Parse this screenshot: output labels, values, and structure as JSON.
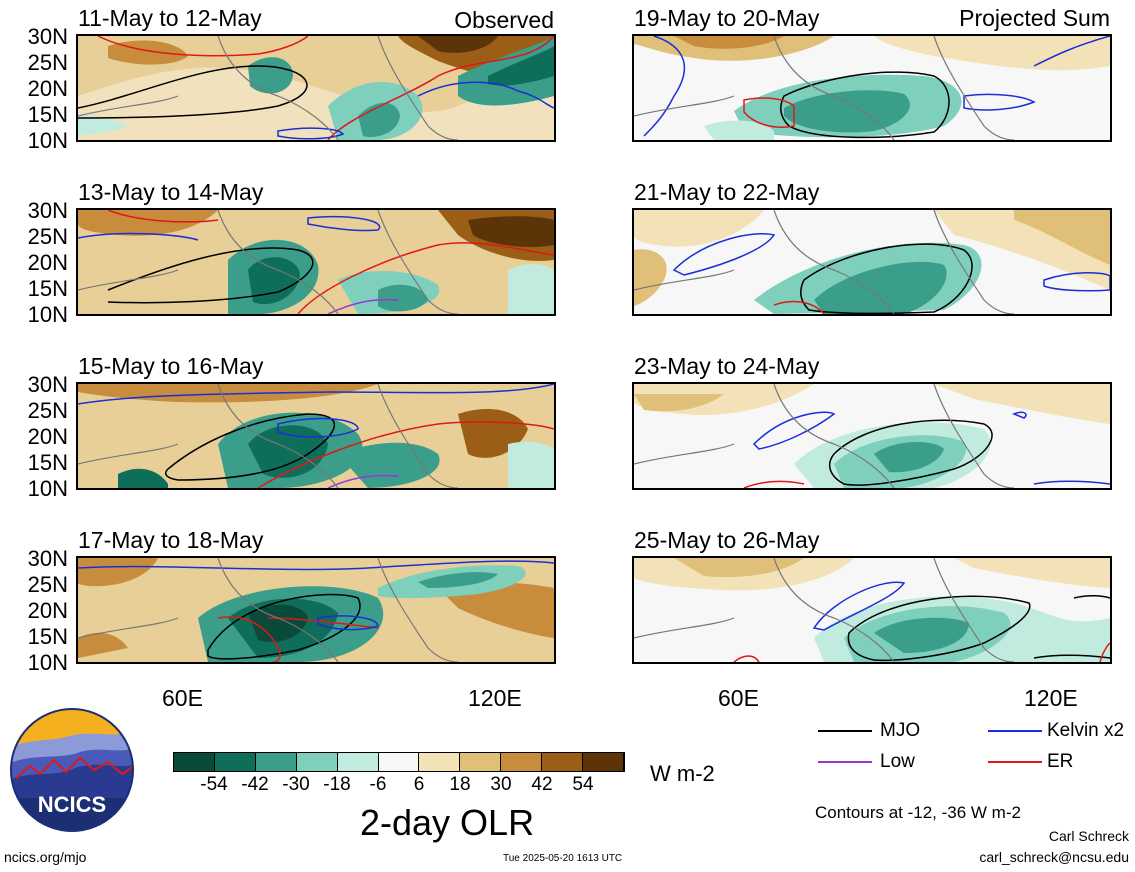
{
  "panels": [
    {
      "title": "11-May to 12-May",
      "tag": "Observed"
    },
    {
      "title": "19-May to 20-May",
      "tag": "Projected Sum"
    },
    {
      "title": "13-May to 14-May",
      "tag": ""
    },
    {
      "title": "21-May to 22-May",
      "tag": ""
    },
    {
      "title": "15-May to 16-May",
      "tag": ""
    },
    {
      "title": "23-May to 24-May",
      "tag": ""
    },
    {
      "title": "17-May to 18-May",
      "tag": ""
    },
    {
      "title": "25-May to 26-May",
      "tag": ""
    }
  ],
  "lat_labels": [
    "30N",
    "25N",
    "20N",
    "15N",
    "10N"
  ],
  "lon_labels": [
    "60E",
    "120E"
  ],
  "colorbar": {
    "ticks": [
      "-54",
      "-42",
      "-30",
      "-18",
      "-6",
      "6",
      "18",
      "30",
      "42",
      "54"
    ],
    "colors": [
      "#0a4a3a",
      "#0f6e5a",
      "#3a9e8a",
      "#7fcfbd",
      "#c2ebe0",
      "#f7f7f7",
      "#f3e2b8",
      "#e0bf78",
      "#c88d3c",
      "#9a5e16",
      "#5c3408"
    ],
    "units": "W m-2",
    "title": "2-day OLR"
  },
  "legend": {
    "mjo": {
      "label": "MJO",
      "color": "#000000"
    },
    "kelvin": {
      "label": "Kelvin x2",
      "color": "#1a2fd6"
    },
    "low": {
      "label": "Low",
      "color": "#9a35d8"
    },
    "er": {
      "label": "ER",
      "color": "#e01818"
    }
  },
  "contours_note": "Contours at -12, -36 W m-2",
  "author": "Carl Schreck",
  "email": "carl_schreck@ncsu.edu",
  "site": "ncics.org/mjo",
  "timestamp": "Tue 2025-05-20 1613 UTC",
  "logo_text": "NCICS"
}
